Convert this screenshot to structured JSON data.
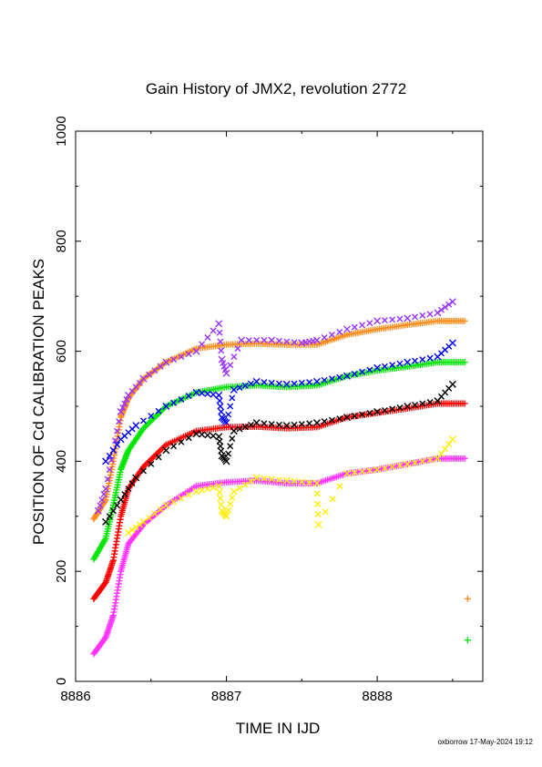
{
  "chart_data": {
    "type": "scatter",
    "title": "Gain History of JMX2, revolution 2772",
    "xlabel": "TIME IN IJD",
    "ylabel": "POSITION OF Cd CALIBRATION PEAKS",
    "xlim": [
      8886,
      8888.7
    ],
    "ylim": [
      0,
      1000
    ],
    "xticks": [
      8886,
      8887,
      8888
    ],
    "xtick_labels": [
      "8886",
      "8887",
      "8888"
    ],
    "yticks": [
      0,
      200,
      400,
      600,
      800,
      1000
    ],
    "ytick_labels": [
      "0",
      "200",
      "400",
      "600",
      "800",
      "1000"
    ],
    "grid": false,
    "series": [
      {
        "color": "#ff8c1a",
        "marker": "+",
        "style": "dense",
        "x": [
          8886.12,
          8886.2,
          8886.25,
          8886.3,
          8886.35,
          8886.45,
          8886.6,
          8886.8,
          8887.0,
          8887.2,
          8887.4,
          8887.6,
          8887.8,
          8888.0,
          8888.2,
          8888.4,
          8888.58
        ],
        "y": [
          295,
          330,
          400,
          480,
          515,
          550,
          580,
          605,
          612,
          614,
          612,
          612,
          630,
          640,
          648,
          655,
          655
        ]
      },
      {
        "color": "#9933ff",
        "marker": "x",
        "style": "sparse",
        "x": [
          8886.15,
          8886.2,
          8886.25,
          8886.3,
          8886.35,
          8886.45,
          8886.6,
          8886.8,
          8886.95,
          8886.97,
          8887.0,
          8887.1,
          8887.3,
          8887.5,
          8887.6,
          8887.8,
          8888.0,
          8888.2,
          8888.4,
          8888.5
        ],
        "y": [
          310,
          350,
          420,
          490,
          520,
          550,
          580,
          600,
          650,
          585,
          560,
          620,
          620,
          615,
          620,
          640,
          655,
          660,
          670,
          690
        ]
      },
      {
        "color": "#00e600",
        "marker": "+",
        "style": "dense",
        "x": [
          8886.12,
          8886.2,
          8886.25,
          8886.3,
          8886.35,
          8886.45,
          8886.6,
          8886.8,
          8887.0,
          8887.2,
          8887.4,
          8887.6,
          8887.8,
          8888.0,
          8888.2,
          8888.4,
          8888.58
        ],
        "y": [
          222,
          260,
          320,
          385,
          420,
          460,
          500,
          525,
          535,
          538,
          535,
          538,
          555,
          565,
          572,
          580,
          580
        ]
      },
      {
        "color": "#0000ff",
        "marker": "x",
        "style": "sparse",
        "x": [
          8886.2,
          8886.3,
          8886.4,
          8886.6,
          8886.8,
          8886.95,
          8886.97,
          8887.0,
          8887.05,
          8887.2,
          8887.4,
          8887.6,
          8887.8,
          8888.0,
          8888.2,
          8888.4,
          8888.5
        ],
        "y": [
          400,
          440,
          465,
          500,
          525,
          520,
          480,
          470,
          530,
          545,
          540,
          545,
          555,
          570,
          580,
          590,
          615
        ]
      },
      {
        "color": "#ff0000",
        "marker": "+",
        "style": "dense",
        "x": [
          8886.12,
          8886.2,
          8886.25,
          8886.3,
          8886.35,
          8886.45,
          8886.6,
          8886.8,
          8887.0,
          8887.2,
          8887.4,
          8887.6,
          8887.8,
          8888.0,
          8888.2,
          8888.4,
          8888.58
        ],
        "y": [
          150,
          180,
          220,
          300,
          350,
          390,
          430,
          455,
          462,
          463,
          460,
          462,
          480,
          488,
          496,
          505,
          505
        ]
      },
      {
        "color": "#000000",
        "marker": "x",
        "style": "sparse",
        "x": [
          8886.2,
          8886.3,
          8886.4,
          8886.6,
          8886.8,
          8886.95,
          8886.97,
          8887.0,
          8887.05,
          8887.2,
          8887.4,
          8887.6,
          8887.8,
          8888.0,
          8888.2,
          8888.4,
          8888.5
        ],
        "y": [
          290,
          330,
          370,
          420,
          450,
          445,
          410,
          400,
          455,
          470,
          465,
          470,
          480,
          490,
          500,
          510,
          540
        ]
      },
      {
        "color": "#ff33ff",
        "marker": "+",
        "style": "dense",
        "x": [
          8886.12,
          8886.2,
          8886.25,
          8886.3,
          8886.35,
          8886.45,
          8886.6,
          8886.8,
          8887.0,
          8887.2,
          8887.4,
          8887.6,
          8887.8,
          8888.0,
          8888.2,
          8888.4,
          8888.58
        ],
        "y": [
          50,
          80,
          120,
          200,
          250,
          285,
          320,
          355,
          362,
          365,
          360,
          360,
          378,
          385,
          395,
          405,
          405
        ]
      },
      {
        "color": "#ffee00",
        "marker": "x",
        "style": "sparse",
        "x": [
          8886.35,
          8886.45,
          8886.6,
          8886.8,
          8886.95,
          8886.97,
          8887.0,
          8887.05,
          8887.2,
          8887.4,
          8887.6,
          8887.61,
          8887.8,
          8888.0,
          8888.2,
          8888.4,
          8888.5
        ],
        "y": [
          270,
          290,
          320,
          345,
          355,
          310,
          300,
          345,
          370,
          365,
          360,
          285,
          378,
          385,
          395,
          405,
          440
        ]
      }
    ],
    "annotations": [
      {
        "x": 8888.6,
        "y": 150,
        "marker": "+",
        "color": "#ff8c1a"
      },
      {
        "x": 8888.6,
        "y": 75,
        "marker": "+",
        "color": "#00e600"
      }
    ]
  },
  "footer": "oxborrow 17-May-2024 19:12"
}
